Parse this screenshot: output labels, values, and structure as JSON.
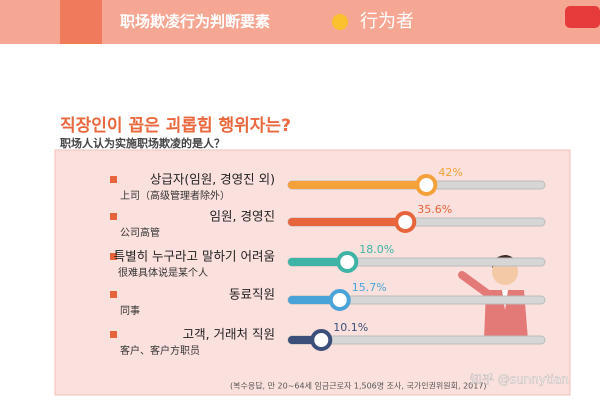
{
  "header": {
    "title": "职场欺凌行为判断要素",
    "section": "行为者"
  },
  "chart_data": {
    "type": "slider-bar",
    "title": "직장인이 꼽은 괴롭힘 행위자는?",
    "subtitle": "职场人认为实施职场欺凌的是人？",
    "categories": [
      "상급자(임원, 경영진 외)",
      "임원, 경영진",
      "특별히 누구라고 말하기 어려움",
      "동료직원",
      "고객, 거래처 직원"
    ],
    "category_notes": [
      "上司（高级管理者除外）",
      "公司高管",
      "很难具体说是某个人",
      "同事",
      "客户、客户方职员"
    ],
    "values": [
      42,
      35.6,
      18,
      15.7,
      10.1
    ],
    "value_labels": [
      "42%",
      "35.6%",
      "18.0%",
      "15.7%",
      "10.1%"
    ],
    "colors": [
      "#f5a13a",
      "#e8643c",
      "#3fb3a5",
      "#4aa3d8",
      "#3c4f7a"
    ],
    "xlim": [
      0,
      78
    ]
  },
  "footnote": "(복수응답, 만 20~64세 임금근로자 1,506명 조사, 국가인권위원회, 2017)",
  "watermark": "知乎 @sunnytian"
}
